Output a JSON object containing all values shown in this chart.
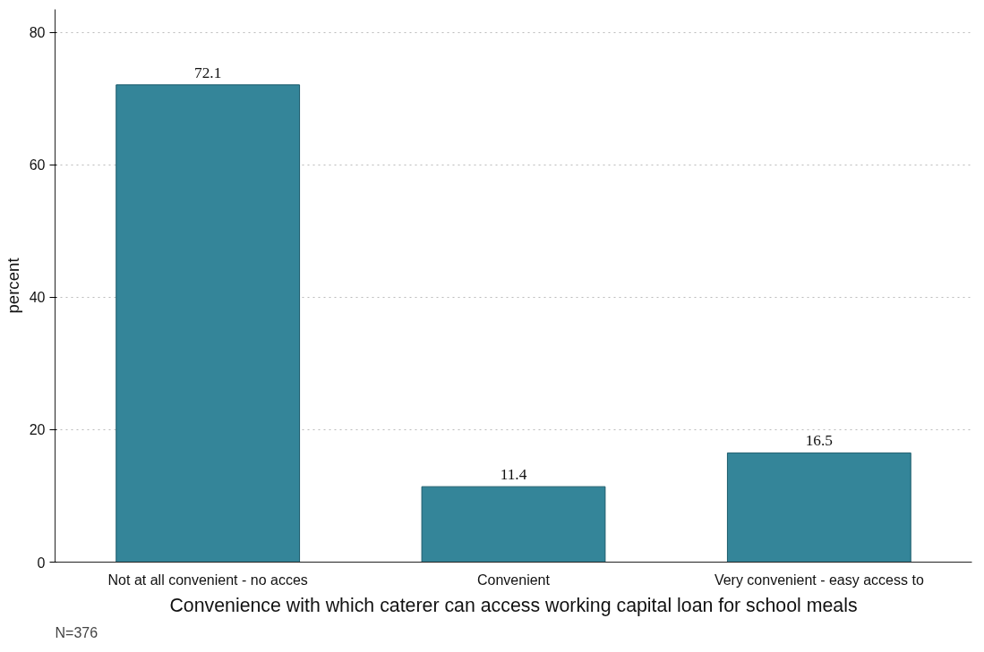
{
  "chart_data": {
    "type": "bar",
    "xlabel": "Convenience with which caterer can access working capital loan for school meals",
    "ylabel": "percent",
    "categories": [
      "Not at all convenient - no acces",
      "Convenient",
      "Very convenient - easy access to"
    ],
    "values": [
      72.1,
      11.4,
      16.5
    ],
    "color": "#348599",
    "ylim": [
      0,
      83.5
    ],
    "yticks": [
      0,
      20,
      40,
      60,
      80
    ],
    "grid": "y",
    "data_labels": true,
    "annotations": [
      "N=376"
    ]
  }
}
